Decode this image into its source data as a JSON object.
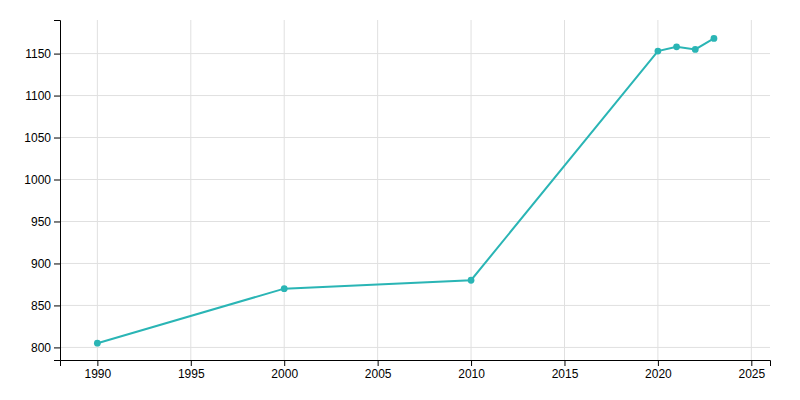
{
  "chart_data": {
    "type": "line",
    "x": [
      1990,
      2000,
      2010,
      2020,
      2021,
      2022,
      2023
    ],
    "values": [
      805,
      870,
      880,
      1153,
      1158,
      1155,
      1168
    ],
    "color": "#2ab5b5",
    "marker": "circle",
    "xlim": [
      1988,
      2026
    ],
    "ylim": [
      785,
      1190
    ],
    "xticks": [
      1990,
      1995,
      2000,
      2005,
      2010,
      2015,
      2020,
      2025
    ],
    "yticks": [
      800,
      850,
      900,
      950,
      1000,
      1050,
      1100,
      1150
    ],
    "grid": true
  }
}
